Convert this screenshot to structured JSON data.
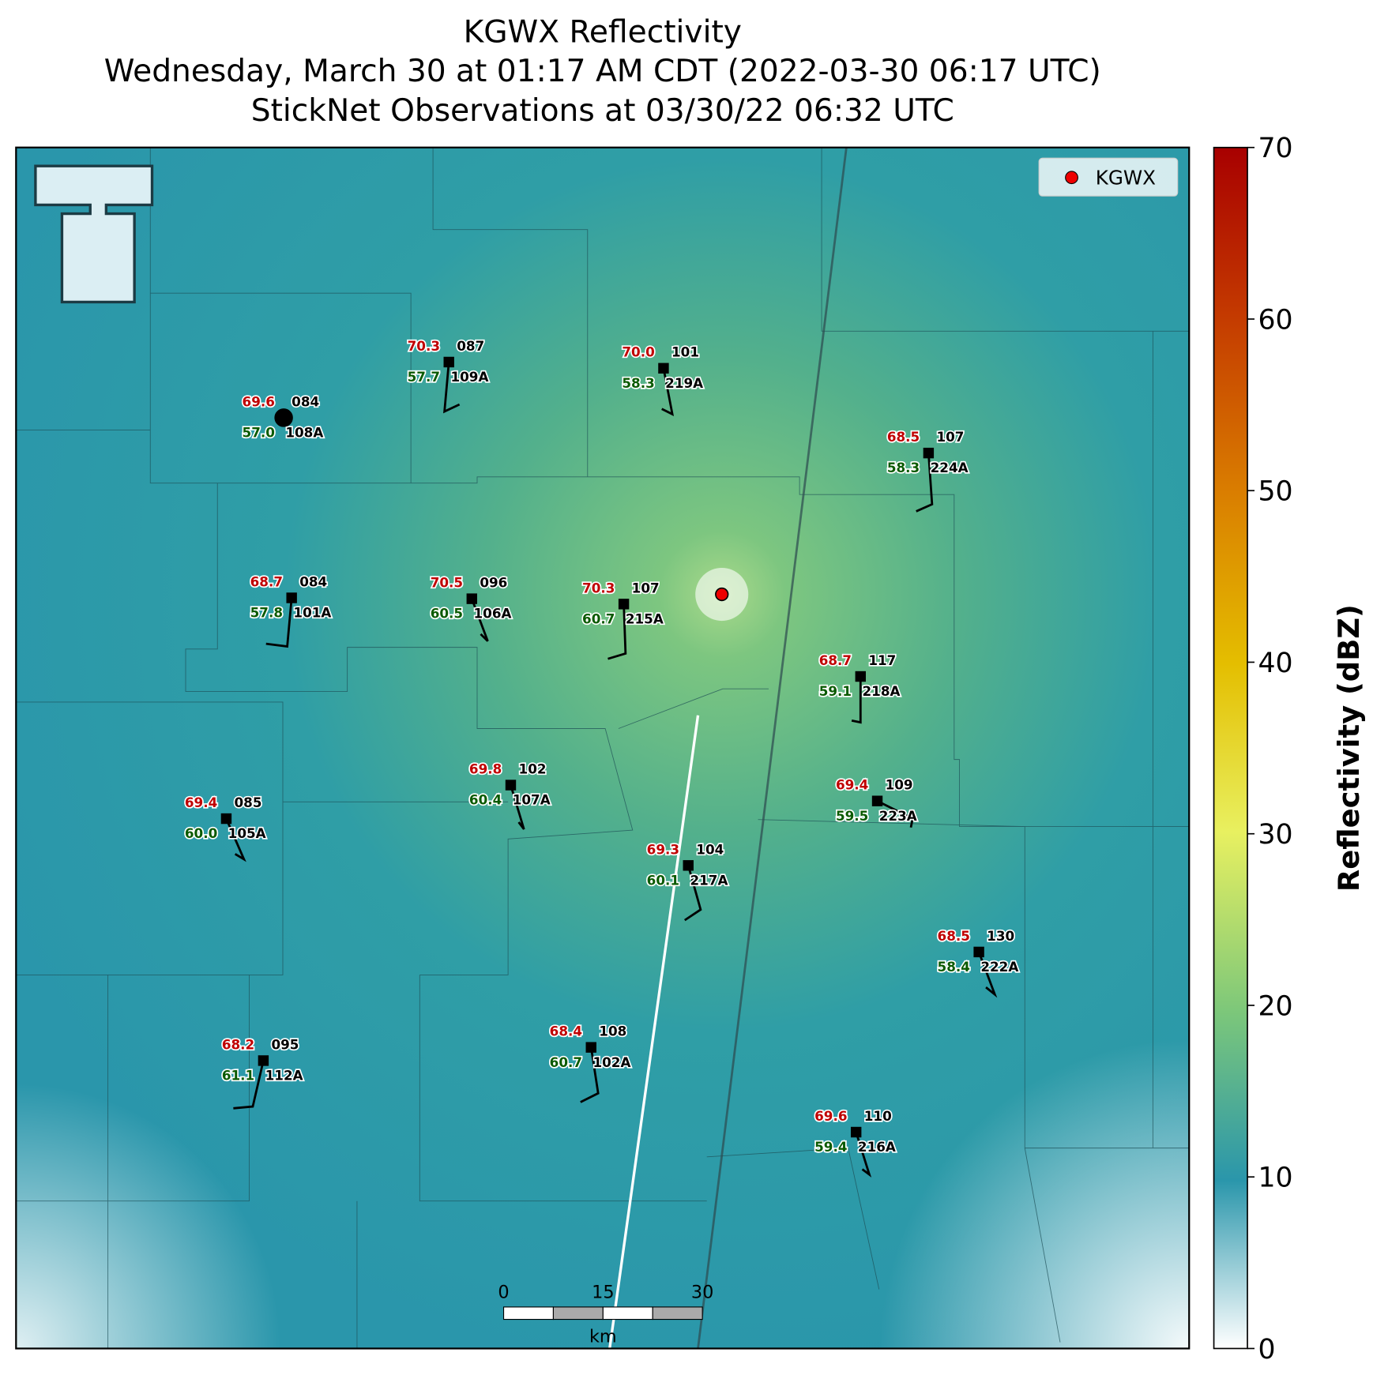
{
  "title": [
    "KGWX Reflectivity",
    "Wednesday, March 30 at 01:17 AM CDT (2022-03-30 06:17 UTC)",
    "StickNet Observations at 03/30/22 06:32 UTC"
  ],
  "legend": {
    "label": "KGWX"
  },
  "colorbar": {
    "label": "Reflectivity (dBZ)",
    "lim": [
      0,
      70
    ],
    "ticks": [
      0,
      10,
      20,
      30,
      40,
      50,
      60,
      70
    ]
  },
  "scale_bar": {
    "ticks": [
      0,
      15,
      30
    ],
    "unit": "km"
  },
  "stations": [
    {
      "temp": "69.6",
      "pressure": "084",
      "dewpoint": "57.0",
      "id": "108A"
    },
    {
      "temp": "70.3",
      "pressure": "087",
      "dewpoint": "57.7",
      "id": "109A"
    },
    {
      "temp": "70.0",
      "pressure": "101",
      "dewpoint": "58.3",
      "id": "219A"
    },
    {
      "temp": "68.5",
      "pressure": "107",
      "dewpoint": "58.3",
      "id": "224A"
    },
    {
      "temp": "68.7",
      "pressure": "084",
      "dewpoint": "57.8",
      "id": "101A"
    },
    {
      "temp": "70.5",
      "pressure": "096",
      "dewpoint": "60.5",
      "id": "106A"
    },
    {
      "temp": "70.3",
      "pressure": "107",
      "dewpoint": "60.7",
      "id": "215A"
    },
    {
      "temp": "68.7",
      "pressure": "117",
      "dewpoint": "59.1",
      "id": "218A"
    },
    {
      "temp": "69.8",
      "pressure": "102",
      "dewpoint": "60.4",
      "id": "107A"
    },
    {
      "temp": "69.4",
      "pressure": "109",
      "dewpoint": "59.5",
      "id": "223A"
    },
    {
      "temp": "69.4",
      "pressure": "085",
      "dewpoint": "60.0",
      "id": "105A"
    },
    {
      "temp": "69.3",
      "pressure": "104",
      "dewpoint": "60.1",
      "id": "217A"
    },
    {
      "temp": "68.5",
      "pressure": "130",
      "dewpoint": "58.4",
      "id": "222A"
    },
    {
      "temp": "68.2",
      "pressure": "095",
      "dewpoint": "61.1",
      "id": "112A"
    },
    {
      "temp": "68.4",
      "pressure": "108",
      "dewpoint": "60.7",
      "id": "102A"
    },
    {
      "temp": "69.6",
      "pressure": "110",
      "dewpoint": "59.4",
      "id": "216A"
    }
  ]
}
